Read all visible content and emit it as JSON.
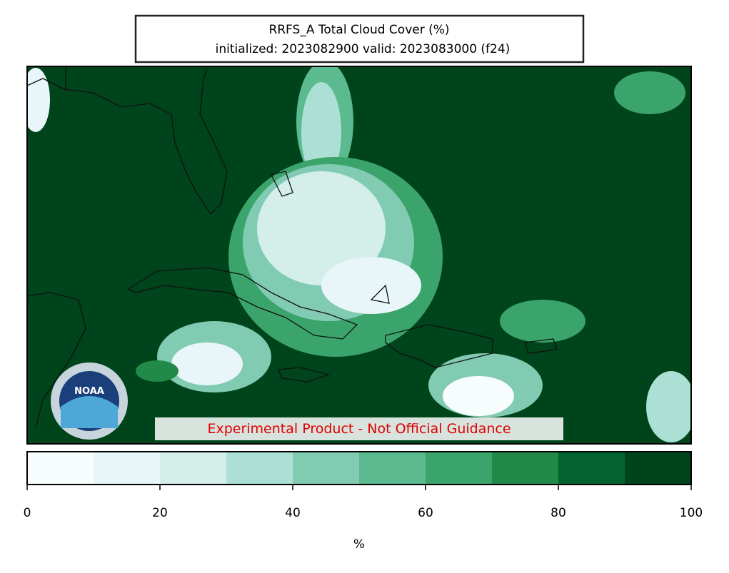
{
  "title": {
    "line1": "RRFS_A Total Cloud Cover (%)",
    "line2": "initialized: 2023082900 valid: 2023083000 (f24)"
  },
  "disclaimer": "Experimental Product - Not Official Guidance",
  "logo": "NOAA",
  "colorbar": {
    "bounds": [
      0,
      10,
      20,
      30,
      40,
      50,
      60,
      70,
      80,
      90,
      100
    ],
    "colors": [
      "#f7fcfd",
      "#e8f6f9",
      "#d4eeea",
      "#ade0d4",
      "#82cbb3",
      "#5bba8f",
      "#3ba46b",
      "#218a48",
      "#046430",
      "#00441b"
    ],
    "ticks": [
      0,
      20,
      40,
      60,
      80,
      100
    ],
    "label": "%"
  }
}
